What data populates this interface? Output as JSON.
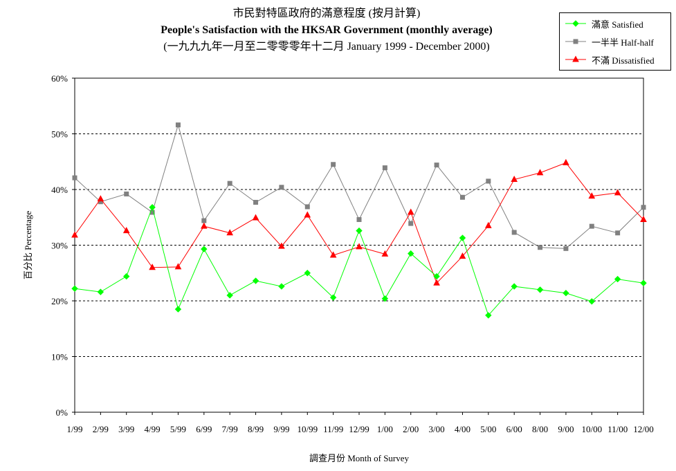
{
  "title": {
    "line1": "市民對特區政府的滿意程度 (按月計算)",
    "line2": "People's Satisfaction with the HKSAR Government (monthly average)",
    "line3": "(一九九九年一月至二零零零年十二月 January 1999 - December 2000)"
  },
  "chart_data": {
    "type": "line",
    "xlabel": "調查月份 Month of Survey",
    "ylabel": "百分比 Percentage",
    "ylim": [
      0,
      60
    ],
    "yticks": [
      0,
      10,
      20,
      30,
      40,
      50,
      60
    ],
    "ytick_labels": [
      "0%",
      "10%",
      "20%",
      "30%",
      "40%",
      "50%",
      "60%"
    ],
    "grid": "horizontal dotted",
    "legend_position": "top-right",
    "categories": [
      "1/99",
      "2/99",
      "3/99",
      "4/99",
      "5/99",
      "6/99",
      "7/99",
      "8/99",
      "9/99",
      "10/99",
      "11/99",
      "12/99",
      "1/00",
      "2/00",
      "3/00",
      "4/00",
      "5/00",
      "6/00",
      "8/00",
      "9/00",
      "10/00",
      "11/00",
      "12/00"
    ],
    "series": [
      {
        "name": "滿意 Satisfied",
        "color": "#00ff00",
        "marker": "diamond",
        "values": [
          22.2,
          21.6,
          24.4,
          36.8,
          18.5,
          29.3,
          21.0,
          23.6,
          22.6,
          25.0,
          20.6,
          32.6,
          20.4,
          28.5,
          24.4,
          31.3,
          17.4,
          22.6,
          22.0,
          21.4,
          19.9,
          23.9,
          23.2
        ]
      },
      {
        "name": "一半半 Half-half",
        "color": "#808080",
        "marker": "square",
        "values": [
          42.1,
          37.8,
          39.2,
          35.9,
          51.6,
          34.4,
          41.1,
          37.7,
          40.4,
          36.9,
          44.5,
          34.6,
          43.9,
          33.9,
          44.4,
          38.6,
          41.5,
          32.3,
          29.6,
          29.4,
          33.4,
          32.2,
          36.8
        ]
      },
      {
        "name": "不滿 Dissatisfied",
        "color": "#ff0000",
        "marker": "triangle",
        "values": [
          31.8,
          38.3,
          32.6,
          26.0,
          26.1,
          33.4,
          32.2,
          34.9,
          29.8,
          35.4,
          28.2,
          29.7,
          28.4,
          35.9,
          23.2,
          28.0,
          33.5,
          41.8,
          43.0,
          44.8,
          38.8,
          39.4,
          34.6
        ]
      }
    ]
  }
}
